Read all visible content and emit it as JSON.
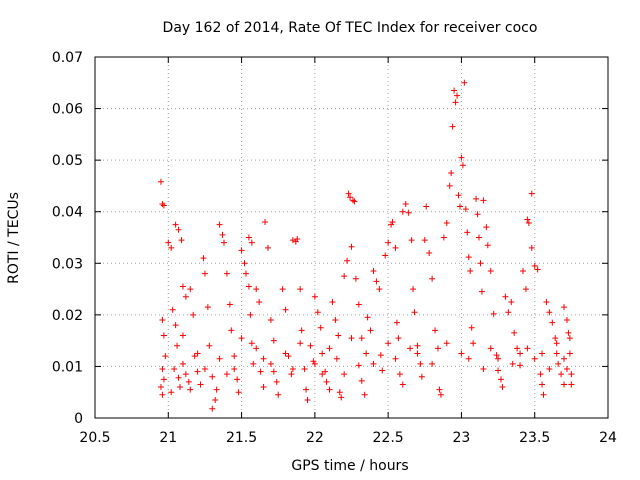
{
  "chart_data": {
    "type": "scatter",
    "title": "Day 162 of 2014, Rate Of TEC Index for receiver coco",
    "xlabel": "GPS time / hours",
    "ylabel": "ROTI / TECUs",
    "xlim": [
      20.5,
      24
    ],
    "ylim": [
      0,
      0.07
    ],
    "x_ticks": [
      20.5,
      21,
      21.5,
      22,
      22.5,
      23,
      23.5,
      24
    ],
    "x_tick_labels": [
      "20.5",
      "21",
      "21.5",
      "22",
      "22.5",
      "23",
      "23.5",
      "24"
    ],
    "y_ticks": [
      0,
      0.01,
      0.02,
      0.03,
      0.04,
      0.05,
      0.06,
      0.07
    ],
    "y_tick_labels": [
      "0",
      "0.01",
      "0.02",
      "0.03",
      "0.04",
      "0.05",
      "0.06",
      "0.07"
    ],
    "grid": true,
    "marker": "+",
    "colors": {
      "points": "#ff0000",
      "grid": "#a0a0a0",
      "axes": "#000000"
    },
    "series": [
      {
        "name": "coco",
        "points": [
          [
            20.95,
            0.0458
          ],
          [
            20.96,
            0.0415
          ],
          [
            20.97,
            0.0412
          ],
          [
            20.96,
            0.019
          ],
          [
            20.97,
            0.016
          ],
          [
            20.98,
            0.012
          ],
          [
            20.96,
            0.0095
          ],
          [
            20.97,
            0.0075
          ],
          [
            20.95,
            0.006
          ],
          [
            20.96,
            0.0045
          ],
          [
            21.0,
            0.034
          ],
          [
            21.02,
            0.033
          ],
          [
            21.03,
            0.021
          ],
          [
            21.05,
            0.018
          ],
          [
            21.06,
            0.014
          ],
          [
            21.04,
            0.0095
          ],
          [
            21.07,
            0.0078
          ],
          [
            21.08,
            0.006
          ],
          [
            21.02,
            0.005
          ],
          [
            21.05,
            0.0375
          ],
          [
            21.07,
            0.0365
          ],
          [
            21.09,
            0.0345
          ],
          [
            21.1,
            0.0255
          ],
          [
            21.12,
            0.0235
          ],
          [
            21.1,
            0.016
          ],
          [
            21.12,
            0.0085
          ],
          [
            21.14,
            0.007
          ],
          [
            21.15,
            0.0055
          ],
          [
            21.15,
            0.025
          ],
          [
            21.17,
            0.02
          ],
          [
            21.18,
            0.012
          ],
          [
            21.2,
            0.009
          ],
          [
            21.22,
            0.0065
          ],
          [
            21.24,
            0.031
          ],
          [
            21.25,
            0.028
          ],
          [
            21.27,
            0.0215
          ],
          [
            21.28,
            0.014
          ],
          [
            21.3,
            0.008
          ],
          [
            21.3,
            0.0018
          ],
          [
            21.32,
            0.0035
          ],
          [
            21.33,
            0.0055
          ],
          [
            21.35,
            0.0375
          ],
          [
            21.37,
            0.0355
          ],
          [
            21.38,
            0.034
          ],
          [
            21.4,
            0.028
          ],
          [
            21.42,
            0.022
          ],
          [
            21.43,
            0.017
          ],
          [
            21.45,
            0.012
          ],
          [
            21.45,
            0.0095
          ],
          [
            21.47,
            0.0075
          ],
          [
            21.48,
            0.005
          ],
          [
            21.5,
            0.0325
          ],
          [
            21.52,
            0.03
          ],
          [
            21.53,
            0.028
          ],
          [
            21.55,
            0.0255
          ],
          [
            21.56,
            0.02
          ],
          [
            21.57,
            0.0145
          ],
          [
            21.58,
            0.0105
          ],
          [
            21.55,
            0.035
          ],
          [
            21.57,
            0.034
          ],
          [
            21.6,
            0.025
          ],
          [
            21.62,
            0.0225
          ],
          [
            21.63,
            0.009
          ],
          [
            21.65,
            0.006
          ],
          [
            21.66,
            0.038
          ],
          [
            21.68,
            0.033
          ],
          [
            21.7,
            0.019
          ],
          [
            21.72,
            0.015
          ],
          [
            21.72,
            0.009
          ],
          [
            21.74,
            0.007
          ],
          [
            21.75,
            0.0045
          ],
          [
            21.78,
            0.025
          ],
          [
            21.8,
            0.021
          ],
          [
            21.82,
            0.012
          ],
          [
            21.84,
            0.0085
          ],
          [
            21.85,
            0.0345
          ],
          [
            21.87,
            0.0342
          ],
          [
            21.88,
            0.0347
          ],
          [
            21.9,
            0.025
          ],
          [
            21.91,
            0.017
          ],
          [
            21.93,
            0.0095
          ],
          [
            21.94,
            0.0055
          ],
          [
            21.95,
            0.0035
          ],
          [
            21.97,
            0.014
          ],
          [
            21.99,
            0.011
          ],
          [
            22.0,
            0.0235
          ],
          [
            22.02,
            0.0205
          ],
          [
            22.04,
            0.0175
          ],
          [
            22.05,
            0.0125
          ],
          [
            22.07,
            0.009
          ],
          [
            22.08,
            0.007
          ],
          [
            22.1,
            0.0055
          ],
          [
            22.12,
            0.0225
          ],
          [
            22.14,
            0.019
          ],
          [
            22.16,
            0.016
          ],
          [
            22.17,
            0.005
          ],
          [
            22.18,
            0.004
          ],
          [
            22.2,
            0.0085
          ],
          [
            22.2,
            0.0275
          ],
          [
            22.22,
            0.0305
          ],
          [
            22.23,
            0.0435
          ],
          [
            22.24,
            0.0428
          ],
          [
            22.25,
            0.0332
          ],
          [
            22.26,
            0.0422
          ],
          [
            22.27,
            0.042
          ],
          [
            22.28,
            0.027
          ],
          [
            22.3,
            0.022
          ],
          [
            22.32,
            0.0155
          ],
          [
            22.3,
            0.0102
          ],
          [
            22.32,
            0.0072
          ],
          [
            22.34,
            0.0045
          ],
          [
            22.36,
            0.0195
          ],
          [
            22.38,
            0.017
          ],
          [
            22.4,
            0.0285
          ],
          [
            22.42,
            0.0265
          ],
          [
            22.44,
            0.025
          ],
          [
            22.45,
            0.0122
          ],
          [
            22.46,
            0.0092
          ],
          [
            22.48,
            0.0315
          ],
          [
            22.5,
            0.034
          ],
          [
            22.52,
            0.0375
          ],
          [
            22.53,
            0.038
          ],
          [
            22.55,
            0.033
          ],
          [
            22.56,
            0.0185
          ],
          [
            22.57,
            0.0155
          ],
          [
            22.58,
            0.0085
          ],
          [
            22.6,
            0.0065
          ],
          [
            22.6,
            0.04
          ],
          [
            22.62,
            0.0415
          ],
          [
            22.64,
            0.0398
          ],
          [
            22.66,
            0.0345
          ],
          [
            22.67,
            0.025
          ],
          [
            22.68,
            0.0205
          ],
          [
            22.7,
            0.014
          ],
          [
            22.72,
            0.0105
          ],
          [
            22.73,
            0.008
          ],
          [
            22.75,
            0.0345
          ],
          [
            22.76,
            0.041
          ],
          [
            22.78,
            0.032
          ],
          [
            22.8,
            0.027
          ],
          [
            22.82,
            0.017
          ],
          [
            22.84,
            0.0135
          ],
          [
            22.85,
            0.0055
          ],
          [
            22.86,
            0.0045
          ],
          [
            22.88,
            0.035
          ],
          [
            22.9,
            0.0378
          ],
          [
            22.92,
            0.045
          ],
          [
            22.93,
            0.0475
          ],
          [
            22.94,
            0.0565
          ],
          [
            22.95,
            0.0635
          ],
          [
            22.96,
            0.0612
          ],
          [
            22.97,
            0.0625
          ],
          [
            22.98,
            0.0432
          ],
          [
            22.99,
            0.041
          ],
          [
            23.0,
            0.0505
          ],
          [
            23.01,
            0.049
          ],
          [
            23.02,
            0.065
          ],
          [
            23.03,
            0.0405
          ],
          [
            23.04,
            0.036
          ],
          [
            23.05,
            0.0312
          ],
          [
            23.06,
            0.0285
          ],
          [
            23.07,
            0.0175
          ],
          [
            23.08,
            0.0145
          ],
          [
            23.1,
            0.0425
          ],
          [
            23.11,
            0.0395
          ],
          [
            23.12,
            0.035
          ],
          [
            23.13,
            0.03
          ],
          [
            23.14,
            0.0245
          ],
          [
            23.15,
            0.0422
          ],
          [
            23.17,
            0.037
          ],
          [
            23.18,
            0.0335
          ],
          [
            23.2,
            0.0285
          ],
          [
            23.22,
            0.0202
          ],
          [
            23.24,
            0.0122
          ],
          [
            23.25,
            0.0092
          ],
          [
            23.27,
            0.0075
          ],
          [
            23.28,
            0.006
          ],
          [
            23.3,
            0.0235
          ],
          [
            23.32,
            0.0205
          ],
          [
            23.34,
            0.0225
          ],
          [
            23.36,
            0.0165
          ],
          [
            23.38,
            0.0135
          ],
          [
            23.4,
            0.0102
          ],
          [
            23.42,
            0.0285
          ],
          [
            23.44,
            0.025
          ],
          [
            23.45,
            0.0385
          ],
          [
            23.46,
            0.0378
          ],
          [
            23.48,
            0.0435
          ],
          [
            23.48,
            0.033
          ],
          [
            23.5,
            0.0295
          ],
          [
            23.52,
            0.0288
          ],
          [
            23.54,
            0.0085
          ],
          [
            23.55,
            0.0065
          ],
          [
            23.56,
            0.0045
          ],
          [
            23.58,
            0.0225
          ],
          [
            23.6,
            0.0205
          ],
          [
            23.62,
            0.0185
          ],
          [
            23.64,
            0.0155
          ],
          [
            23.65,
            0.0125
          ],
          [
            23.66,
            0.0105
          ],
          [
            23.68,
            0.0085
          ],
          [
            23.7,
            0.0065
          ],
          [
            23.7,
            0.0215
          ],
          [
            23.72,
            0.019
          ],
          [
            23.73,
            0.0165
          ],
          [
            23.74,
            0.0125
          ],
          [
            23.75,
            0.0085
          ],
          [
            23.75,
            0.0065
          ],
          [
            21.1,
            0.0105
          ],
          [
            21.2,
            0.0125
          ],
          [
            21.25,
            0.0095
          ],
          [
            21.35,
            0.0115
          ],
          [
            21.4,
            0.0085
          ],
          [
            21.5,
            0.0155
          ],
          [
            21.6,
            0.0135
          ],
          [
            21.65,
            0.0115
          ],
          [
            21.7,
            0.0105
          ],
          [
            21.8,
            0.0125
          ],
          [
            21.85,
            0.0095
          ],
          [
            21.9,
            0.0145
          ],
          [
            22.0,
            0.0105
          ],
          [
            22.05,
            0.0085
          ],
          [
            22.1,
            0.0135
          ],
          [
            22.15,
            0.0115
          ],
          [
            22.25,
            0.0155
          ],
          [
            22.35,
            0.0125
          ],
          [
            22.4,
            0.0105
          ],
          [
            22.5,
            0.0145
          ],
          [
            22.55,
            0.0115
          ],
          [
            22.65,
            0.0135
          ],
          [
            22.7,
            0.0125
          ],
          [
            22.8,
            0.0105
          ],
          [
            22.9,
            0.0145
          ],
          [
            23.0,
            0.0125
          ],
          [
            23.05,
            0.0115
          ],
          [
            23.15,
            0.0095
          ],
          [
            23.2,
            0.0135
          ],
          [
            23.25,
            0.0115
          ],
          [
            23.35,
            0.0105
          ],
          [
            23.4,
            0.0125
          ],
          [
            23.45,
            0.0135
          ],
          [
            23.5,
            0.0115
          ],
          [
            23.55,
            0.0125
          ],
          [
            23.6,
            0.0095
          ],
          [
            23.65,
            0.0145
          ],
          [
            23.7,
            0.0115
          ],
          [
            23.72,
            0.0095
          ],
          [
            23.74,
            0.0155
          ]
        ]
      }
    ]
  }
}
